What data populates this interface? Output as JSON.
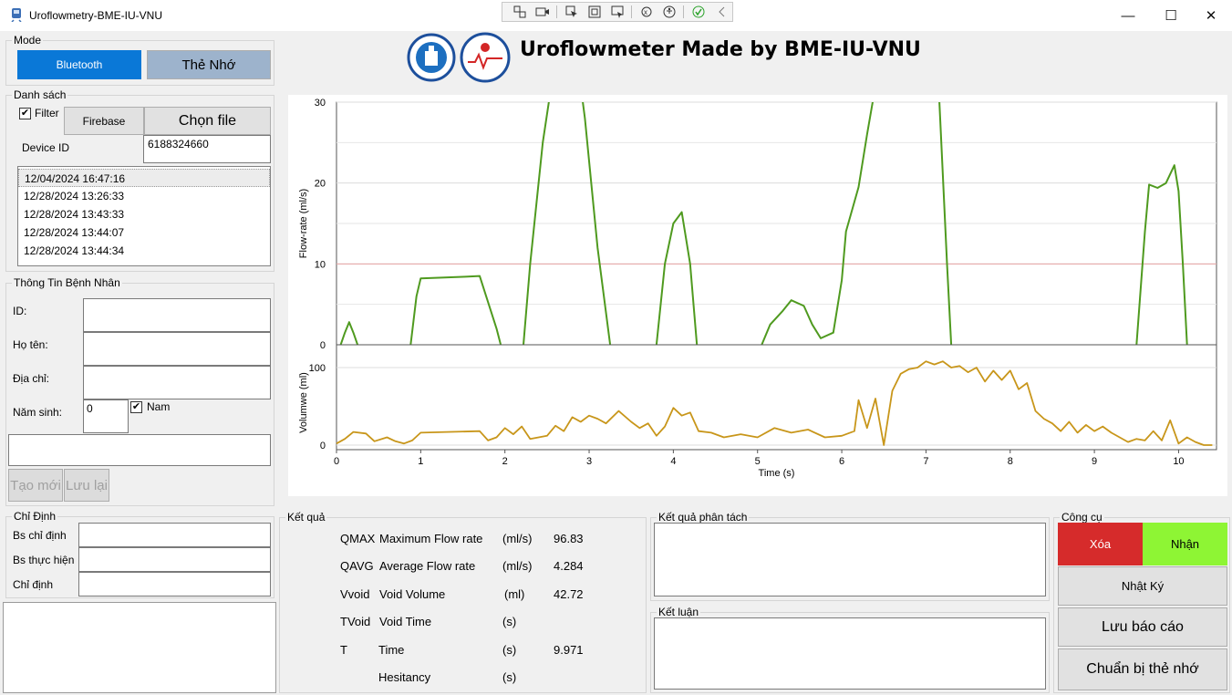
{
  "window": {
    "title": "Uroflowmetry-BME-IU-VNU",
    "controls": [
      "—",
      "☐",
      "✕"
    ]
  },
  "header": {
    "title": "Uroflowmeter Made by BME-IU-VNU"
  },
  "mode": {
    "label": "Mode",
    "bluetooth": "Bluetooth",
    "memory_card": "Thẻ Nhớ"
  },
  "list_group": {
    "label": "Danh sách",
    "filter_label": "Filter",
    "filter_checked": true,
    "firebase": "Firebase",
    "choose_file": "Chọn file",
    "device_id_label": "Device ID",
    "device_id": "6188324660",
    "items": [
      "12/04/2024 16:47:16",
      "12/28/2024 13:26:33",
      "12/28/2024 13:43:33",
      "12/28/2024 13:44:07",
      "12/28/2024 13:44:34"
    ]
  },
  "patient": {
    "label": "Thông Tin Bệnh Nhân",
    "id_label": "ID:",
    "name_label": "Họ tên:",
    "address_label": "Địa chỉ:",
    "birth_label": "Năm sinh:",
    "birth_value": "0",
    "male_label": "Nam",
    "male_checked": true,
    "new_button": "Tạo mới",
    "save_button": "Lưu lại"
  },
  "assign": {
    "label": "Chỉ Định",
    "doctor_assign": "Bs chỉ định",
    "doctor_perform": "Bs thực hiện",
    "indication": "Chỉ định"
  },
  "results": {
    "label": "Kết quả",
    "rows": [
      {
        "abbr": "QMAX",
        "name": "Maximum Flow rate",
        "unit": "(ml/s)",
        "value": "96.83"
      },
      {
        "abbr": "QAVG",
        "name": "Average Flow rate",
        "unit": "(ml/s)",
        "value": "4.284"
      },
      {
        "abbr": "Vvoid",
        "name": "Void Volume",
        "unit": "(ml)",
        "value": "42.72"
      },
      {
        "abbr": "TVoid",
        "name": "Void Time",
        "unit": "(s)",
        "value": ""
      },
      {
        "abbr": "T",
        "name": "Time",
        "unit": "(s)",
        "value": "9.971"
      },
      {
        "abbr": "",
        "name": "Hesitancy",
        "unit": "(s)",
        "value": ""
      }
    ]
  },
  "analysis": {
    "label": "Kết quả phân tách"
  },
  "conclusion": {
    "label": "Kết luận"
  },
  "tools": {
    "label": "Công cụ",
    "delete": "Xóa",
    "receive": "Nhận",
    "log": "Nhật Ký",
    "save_report": "Lưu báo cáo",
    "prepare_card": "Chuẩn bị thẻ nhớ"
  },
  "colors": {
    "bluetooth_active": "#0a78d7",
    "memory_card": "#9db3cc",
    "delete": "#d62b2b",
    "receive": "#8ef534",
    "flow_line": "#4f9a1f",
    "volume_line": "#c8961a"
  },
  "chart_data": [
    {
      "type": "line",
      "ylabel": "Flow-rate (ml/s)",
      "ylim": [
        0,
        30
      ],
      "yticks": [
        0,
        10,
        20,
        30
      ],
      "threshold": 10,
      "series": [
        {
          "x": [
            0.05,
            0.1,
            0.15,
            0.2,
            0.25,
            0.88,
            0.95,
            1.0,
            1.5,
            1.7,
            1.9,
            1.95,
            2.22,
            2.3,
            2.45,
            2.55,
            2.6,
            2.9,
            2.95,
            3.1,
            3.25,
            3.8,
            3.9,
            4.0,
            4.1,
            4.2,
            4.28,
            5.05,
            5.15,
            5.3,
            5.4,
            5.55,
            5.65,
            5.75,
            5.9,
            6.0,
            6.05,
            6.2,
            6.3,
            6.4,
            7.15,
            7.25,
            7.3,
            9.5,
            9.6,
            9.65,
            9.75,
            9.85,
            9.95,
            10.0,
            10.05,
            10.1
          ],
          "y": [
            0,
            1.5,
            2.8,
            1.5,
            0,
            0,
            6,
            8.2,
            8.4,
            8.5,
            2,
            0,
            0,
            10,
            25,
            32,
            32,
            32,
            28,
            12,
            0,
            0,
            10,
            15,
            16.4,
            10,
            0,
            0,
            2.5,
            4.2,
            5.5,
            4.8,
            2.5,
            0.8,
            1.5,
            8,
            14,
            19.5,
            26,
            32,
            32,
            10,
            0,
            0,
            14,
            19.8,
            19.4,
            20,
            22.2,
            19,
            10,
            0
          ]
        }
      ]
    },
    {
      "type": "line",
      "ylabel": "Volumwe (ml)",
      "xlabel": "Time (s)",
      "ylim": [
        0,
        100
      ],
      "yticks": [
        0,
        100
      ],
      "xlim": [
        0,
        10.45
      ],
      "xticks": [
        0,
        1,
        2,
        3,
        4,
        5,
        6,
        7,
        8,
        9,
        10
      ],
      "series": [
        {
          "x": [
            0,
            0.1,
            0.2,
            0.35,
            0.45,
            0.6,
            0.7,
            0.8,
            0.9,
            1.0,
            1.7,
            1.8,
            1.9,
            2.0,
            2.1,
            2.2,
            2.3,
            2.5,
            2.6,
            2.7,
            2.8,
            2.9,
            3.0,
            3.1,
            3.2,
            3.35,
            3.5,
            3.6,
            3.7,
            3.8,
            3.9,
            4.0,
            4.1,
            4.2,
            4.3,
            4.45,
            4.6,
            4.8,
            5.0,
            5.2,
            5.4,
            5.6,
            5.8,
            6.0,
            6.15,
            6.2,
            6.3,
            6.4,
            6.5,
            6.6,
            6.7,
            6.8,
            6.9,
            7.0,
            7.1,
            7.2,
            7.3,
            7.4,
            7.5,
            7.6,
            7.7,
            7.8,
            7.9,
            8.0,
            8.1,
            8.2,
            8.3,
            8.4,
            8.5,
            8.6,
            8.7,
            8.8,
            8.9,
            9.0,
            9.1,
            9.2,
            9.3,
            9.4,
            9.5,
            9.6,
            9.7,
            9.8,
            9.9,
            10.0,
            10.1,
            10.2,
            10.3,
            10.4
          ],
          "y": [
            2,
            8,
            17,
            15,
            5,
            10,
            5,
            2,
            6,
            16,
            18,
            6,
            10,
            22,
            14,
            24,
            8,
            12,
            25,
            18,
            36,
            30,
            38,
            34,
            28,
            44,
            30,
            22,
            28,
            12,
            24,
            48,
            38,
            42,
            18,
            16,
            10,
            14,
            10,
            22,
            16,
            20,
            10,
            12,
            18,
            58,
            22,
            60,
            0,
            70,
            92,
            98,
            100,
            108,
            104,
            108,
            100,
            102,
            94,
            100,
            82,
            96,
            84,
            96,
            72,
            80,
            44,
            34,
            28,
            18,
            30,
            16,
            26,
            18,
            24,
            16,
            10,
            4,
            8,
            6,
            18,
            6,
            32,
            2,
            10,
            4,
            0,
            0
          ]
        }
      ]
    }
  ]
}
